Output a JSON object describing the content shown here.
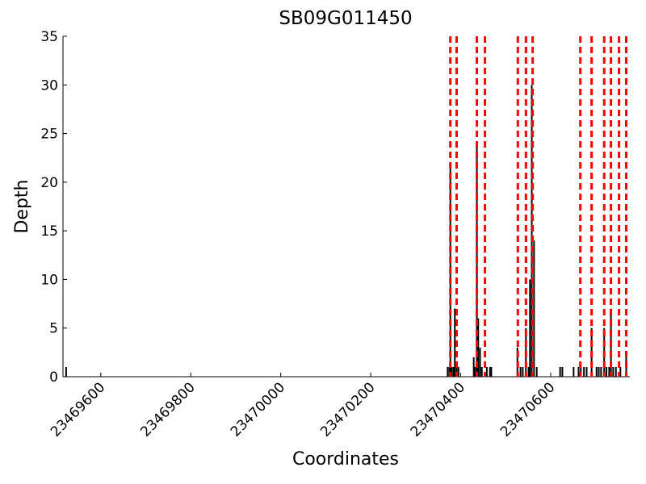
{
  "chart_data": {
    "type": "coverage",
    "title": "SB09G011450",
    "xlabel": "Coordinates",
    "ylabel": "Depth",
    "xlim": [
      23469516,
      23470776
    ],
    "ylim": [
      0,
      35
    ],
    "xticks": [
      23469600,
      23469800,
      23470000,
      23470200,
      23470400,
      23470600
    ],
    "yticks": [
      0,
      5,
      10,
      15,
      20,
      25,
      30,
      35
    ],
    "color": "#000000",
    "x": [
      23469523,
      23470371,
      23470375,
      23470377,
      23470380,
      23470384,
      23470387,
      23470391,
      23470395,
      23470429,
      23470432,
      23470436,
      23470439,
      23470443,
      23470447,
      23470458,
      23470465,
      23470468,
      23470526,
      23470533,
      23470538,
      23470545,
      23470551,
      23470554,
      23470558,
      23470563,
      23470569,
      23470621,
      23470626,
      23470651,
      23470662,
      23470667,
      23470674,
      23470680,
      23470691,
      23470702,
      23470707,
      23470712,
      23470719,
      23470724,
      23470730,
      23470734,
      23470739,
      23470745,
      23470755,
      23470768
    ],
    "values": [
      1,
      1,
      1,
      22,
      1,
      1,
      7,
      1,
      1,
      2,
      1,
      24,
      6,
      3,
      1,
      1,
      1,
      1,
      3,
      1,
      1,
      5,
      1,
      10,
      30,
      14,
      1,
      1,
      1,
      1,
      1,
      1,
      1,
      1,
      5,
      1,
      1,
      1,
      5,
      1,
      1,
      7,
      1,
      1,
      1,
      2
    ],
    "vlines": [
      23470377,
      23470391,
      23470436,
      23470454,
      23470527,
      23470545,
      23470560,
      23470666,
      23470691,
      23470719,
      23470734,
      23470752,
      23470768
    ],
    "vline_color": "#ff0000"
  }
}
